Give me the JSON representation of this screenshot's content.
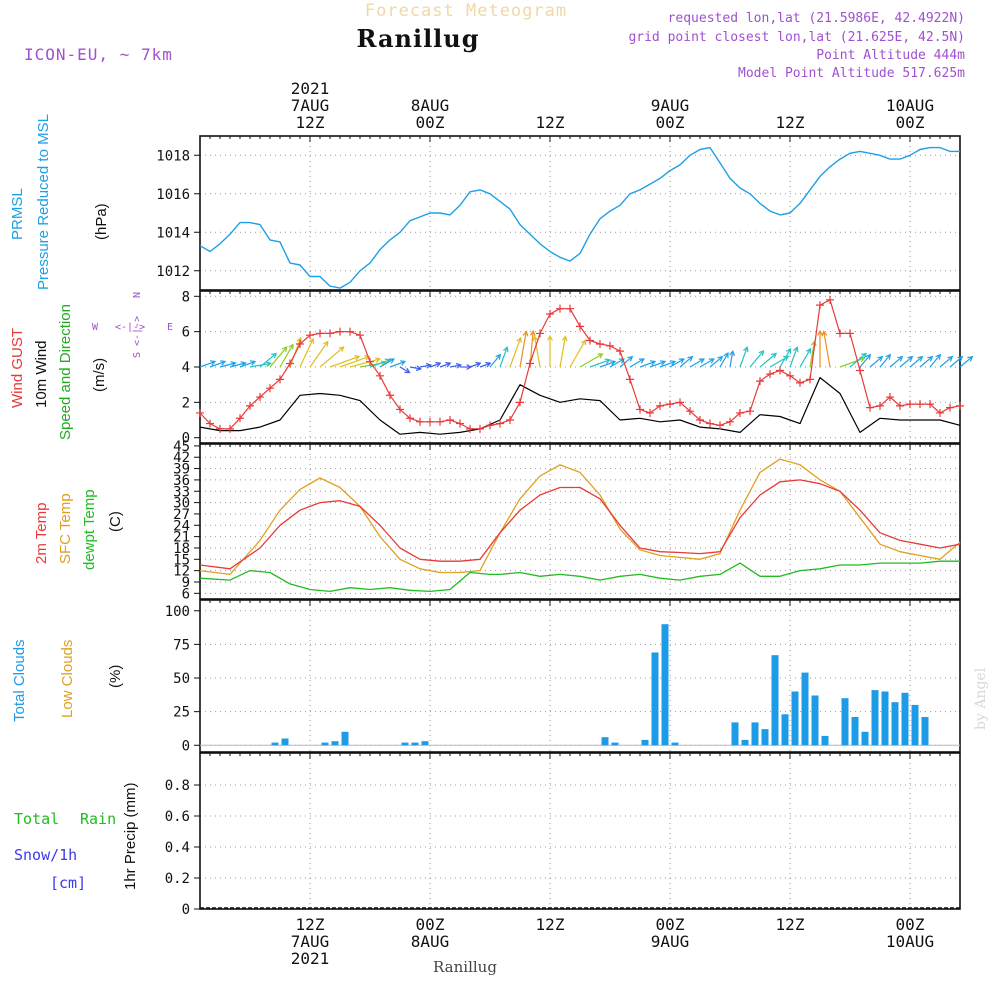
{
  "header": {
    "super_title": "Forecast Meteogram",
    "location": "Ranillug",
    "model": "ICON-EU, ~ 7km",
    "info_lines": [
      "requested lon,lat (21.5986E, 42.4922N)",
      "grid point closest lon,lat (21.625E, 42.5N)",
      "Point Altitude 444m",
      "Model Point Altitude 517.625m"
    ],
    "credit": "by Angel",
    "bottom_label": "Ranillug"
  },
  "time_axis": {
    "top": [
      {
        "hour": 11,
        "lines": [
          "2021",
          "7AUG",
          "12Z"
        ]
      },
      {
        "hour": 23,
        "lines": [
          "8AUG",
          "00Z"
        ]
      },
      {
        "hour": 35,
        "lines": [
          "12Z"
        ]
      },
      {
        "hour": 47,
        "lines": [
          "9AUG",
          "00Z"
        ]
      },
      {
        "hour": 59,
        "lines": [
          "12Z"
        ]
      },
      {
        "hour": 71,
        "lines": [
          "10AUG",
          "00Z"
        ]
      }
    ],
    "bottom": [
      {
        "hour": 11,
        "lines": [
          "12Z",
          "7AUG",
          "2021"
        ]
      },
      {
        "hour": 23,
        "lines": [
          "00Z",
          "8AUG"
        ]
      },
      {
        "hour": 35,
        "lines": [
          "12Z"
        ]
      },
      {
        "hour": 47,
        "lines": [
          "00Z",
          "9AUG"
        ]
      },
      {
        "hour": 59,
        "lines": [
          "12Z"
        ]
      },
      {
        "hour": 71,
        "lines": [
          "00Z",
          "10AUG"
        ]
      }
    ],
    "range_hours": [
      0,
      76
    ]
  },
  "colors": {
    "pressure": "#1ea0e6",
    "gust": "#e83a3a",
    "wind": "#000000",
    "dir_label": "#22aa22",
    "temp2m": "#e83a3a",
    "sfc": "#e0a020",
    "dewpt": "#22bb22",
    "clouds_total": "#1e9be6",
    "clouds_low": "#e0a020",
    "rain": "#22bb22",
    "snow": "#3a3aee",
    "purple": "#a050d0"
  },
  "panels": {
    "pressure": {
      "labels": [
        "PRMSL",
        "Pressure Reduced to MSL"
      ],
      "unit": "(hPa)",
      "yticks": [
        "1012",
        "1014",
        "1016",
        "1018"
      ]
    },
    "wind": {
      "labels": [
        "Wind GUST",
        "10m Wind",
        "Speed and Direction"
      ],
      "unit": "(m/s)",
      "yticks": [
        "0",
        "2",
        "4",
        "6",
        "8"
      ],
      "compass": {
        "n": "N",
        "s": "S",
        "e": "E",
        "w": "W"
      }
    },
    "temp": {
      "labels": [
        "2m Temp",
        "SFC Temp",
        "dewpt Temp"
      ],
      "unit": "(C)",
      "yticks": [
        "6",
        "9",
        "12",
        "15",
        "18",
        "21",
        "24",
        "27",
        "30",
        "33",
        "36",
        "39",
        "42",
        "45"
      ]
    },
    "clouds": {
      "labels": [
        "Total Clouds",
        "Low Clouds"
      ],
      "unit": "(%)",
      "yticks": [
        "0",
        "25",
        "50",
        "75",
        "100"
      ]
    },
    "precip": {
      "labels": [
        "Total",
        "Rain",
        "Snow/1h",
        "[cm]"
      ],
      "unit": "1hr Precip (mm)",
      "yticks": [
        "0",
        "0.2",
        "0.4",
        "0.6",
        "0.8"
      ]
    }
  },
  "chart_data": [
    {
      "type": "line",
      "xlabel": "",
      "ylabel": "(hPa)",
      "ylim": [
        1011,
        1019
      ],
      "series": [
        {
          "name": "PRMSL",
          "x": [
            0,
            1,
            2,
            3,
            4,
            5,
            6,
            7,
            8,
            9,
            10,
            11,
            12,
            13,
            14,
            15,
            16,
            17,
            18,
            19,
            20,
            21,
            22,
            23,
            24,
            25,
            26,
            27,
            28,
            29,
            30,
            31,
            32,
            33,
            34,
            35,
            36,
            37,
            38,
            39,
            40,
            41,
            42,
            43,
            44,
            45,
            46,
            47,
            48,
            49,
            50,
            51,
            52,
            53,
            54,
            55,
            56,
            57,
            58,
            59,
            60,
            61,
            62,
            63,
            64,
            65,
            66,
            67,
            68,
            69,
            70,
            71,
            72,
            73,
            74,
            75,
            76
          ],
          "values": [
            1013.3,
            1013.0,
            1013.4,
            1013.9,
            1014.5,
            1014.5,
            1014.4,
            1013.6,
            1013.5,
            1012.4,
            1012.3,
            1011.7,
            1011.7,
            1011.2,
            1011.1,
            1011.4,
            1012.0,
            1012.4,
            1013.1,
            1013.6,
            1014.0,
            1014.6,
            1014.8,
            1015.0,
            1015.0,
            1014.9,
            1015.4,
            1016.1,
            1016.2,
            1016.0,
            1015.6,
            1015.2,
            1014.4,
            1013.9,
            1013.4,
            1013.0,
            1012.7,
            1012.5,
            1012.9,
            1013.9,
            1014.7,
            1015.1,
            1015.4,
            1016.0,
            1016.2,
            1016.5,
            1016.8,
            1017.2,
            1017.5,
            1018.0,
            1018.3,
            1018.4,
            1017.6,
            1016.8,
            1016.3,
            1016.0,
            1015.5,
            1015.1,
            1014.9,
            1015.0,
            1015.5,
            1016.2,
            1016.9,
            1017.4,
            1017.8,
            1018.1,
            1018.2,
            1018.1,
            1018.0,
            1017.8,
            1017.8,
            1018.0,
            1018.3,
            1018.4,
            1018.4,
            1018.2,
            1018.2
          ]
        }
      ]
    },
    {
      "type": "line",
      "ylabel": "(m/s)",
      "ylim": [
        -0.3,
        8.3
      ],
      "series": [
        {
          "name": "Wind GUST",
          "x": [
            0,
            1,
            2,
            3,
            4,
            5,
            6,
            7,
            8,
            9,
            10,
            11,
            12,
            13,
            14,
            15,
            16,
            17,
            18,
            19,
            20,
            21,
            22,
            23,
            24,
            25,
            26,
            27,
            28,
            29,
            30,
            31,
            32,
            33,
            34,
            35,
            36,
            37,
            38,
            39,
            40,
            41,
            42,
            43,
            44,
            45,
            46,
            47,
            48,
            49,
            50,
            51,
            52,
            53,
            54,
            55,
            56,
            57,
            58,
            59,
            60,
            61,
            62,
            63,
            64,
            65,
            66,
            67,
            68,
            69,
            70,
            71,
            72,
            73,
            74,
            75,
            76
          ],
          "values": [
            1.4,
            0.8,
            0.5,
            0.5,
            1.1,
            1.8,
            2.3,
            2.8,
            3.3,
            4.2,
            5.3,
            5.8,
            5.9,
            5.9,
            6.0,
            6.0,
            5.8,
            4.3,
            3.5,
            2.4,
            1.6,
            1.1,
            0.9,
            0.9,
            0.9,
            1.0,
            0.8,
            0.5,
            0.5,
            0.7,
            0.8,
            1.0,
            2.0,
            4.2,
            5.9,
            7.0,
            7.3,
            7.3,
            6.3,
            5.5,
            5.3,
            5.2,
            4.9,
            3.3,
            1.6,
            1.4,
            1.8,
            1.9,
            2.0,
            1.5,
            1.0,
            0.8,
            0.7,
            0.9,
            1.4,
            1.5,
            3.2,
            3.6,
            3.8,
            3.5,
            3.1,
            3.3,
            7.5,
            7.8,
            5.9,
            5.9,
            3.8,
            1.7,
            1.8,
            2.3,
            1.8,
            1.9,
            1.9,
            1.9,
            1.4,
            1.7,
            1.8
          ]
        },
        {
          "name": "10m Wind",
          "x": [
            0,
            2,
            4,
            6,
            8,
            10,
            12,
            14,
            16,
            18,
            20,
            22,
            24,
            26,
            28,
            30,
            32,
            34,
            36,
            38,
            40,
            42,
            44,
            46,
            48,
            50,
            52,
            54,
            56,
            58,
            60,
            62,
            64,
            66,
            68,
            70,
            72,
            74,
            76
          ],
          "values": [
            0.6,
            0.4,
            0.4,
            0.6,
            1.0,
            2.4,
            2.5,
            2.4,
            2.1,
            1.0,
            0.2,
            0.3,
            0.2,
            0.3,
            0.5,
            1.0,
            3.0,
            2.4,
            2.0,
            2.2,
            2.1,
            1.0,
            1.1,
            0.9,
            1.0,
            0.6,
            0.5,
            0.3,
            1.3,
            1.2,
            0.8,
            3.4,
            2.5,
            0.3,
            1.1,
            1.0,
            1.0,
            1.0,
            0.7
          ]
        }
      ]
    },
    {
      "type": "line",
      "ylabel": "(C)",
      "ylim": [
        4.5,
        45.5
      ],
      "series": [
        {
          "name": "2m Temp",
          "x": [
            0,
            3,
            6,
            8,
            10,
            12,
            14,
            16,
            18,
            20,
            22,
            24,
            26,
            28,
            30,
            32,
            34,
            36,
            38,
            40,
            42,
            44,
            46,
            48,
            50,
            52,
            54,
            56,
            58,
            60,
            62,
            64,
            66,
            68,
            70,
            72,
            74,
            76
          ],
          "values": [
            13.5,
            12.5,
            18,
            24,
            28,
            30,
            30.5,
            29,
            24,
            18,
            15,
            14.5,
            14.5,
            15,
            22,
            28,
            32,
            34,
            34,
            31,
            24,
            18,
            17,
            16.8,
            16.5,
            17,
            26,
            32,
            35.5,
            36,
            35,
            33,
            28,
            22,
            20,
            19,
            18,
            19
          ]
        },
        {
          "name": "SFC Temp",
          "x": [
            0,
            3,
            6,
            8,
            10,
            12,
            14,
            16,
            18,
            20,
            22,
            24,
            26,
            28,
            30,
            32,
            34,
            36,
            38,
            40,
            42,
            44,
            46,
            48,
            50,
            52,
            54,
            56,
            58,
            60,
            62,
            64,
            66,
            68,
            70,
            72,
            74,
            76
          ],
          "values": [
            12,
            11,
            20,
            28,
            33.5,
            36.5,
            34,
            29,
            21,
            15,
            12.5,
            11.5,
            11.5,
            12,
            22,
            31,
            37,
            40,
            38,
            32,
            23,
            17.5,
            16,
            15.5,
            15,
            16.5,
            28,
            38,
            41.5,
            40,
            36,
            33,
            26,
            19,
            17,
            16,
            15,
            19.5
          ]
        },
        {
          "name": "dewpt Temp",
          "x": [
            0,
            3,
            5,
            7,
            9,
            11,
            13,
            15,
            17,
            19,
            21,
            23,
            25,
            27,
            29,
            30,
            32,
            34,
            36,
            38,
            40,
            42,
            44,
            46,
            48,
            50,
            52,
            54,
            56,
            57,
            58,
            60,
            62,
            64,
            66,
            68,
            70,
            72,
            74,
            76
          ],
          "values": [
            10,
            9.5,
            12,
            11.5,
            8.5,
            7,
            6.5,
            7.5,
            7,
            7.5,
            6.8,
            6.5,
            7,
            11.5,
            11,
            11,
            11.5,
            10.5,
            11,
            10.5,
            9.5,
            10.5,
            11,
            10,
            9.5,
            10.5,
            11,
            14,
            10.5,
            10.5,
            10.5,
            12,
            12.5,
            13.5,
            13.5,
            14,
            14,
            14,
            14.5,
            14.5
          ]
        }
      ]
    },
    {
      "type": "bar",
      "ylabel": "(%)",
      "ylim": [
        -5,
        108
      ],
      "series": [
        {
          "name": "Total Clouds",
          "x": [
            7.5,
            8.5,
            12.5,
            13.5,
            14.5,
            20.5,
            21.5,
            22.5,
            40.5,
            41.5,
            44.5,
            45.5,
            46.5,
            47.5,
            53.5,
            54.5,
            55.5,
            56.5,
            57.5,
            58.5,
            59.5,
            60.5,
            61.5,
            62.5,
            63.5,
            64.5,
            65.5,
            66.5,
            67.5,
            68.5,
            69.5,
            70.5,
            71.5,
            72.5
          ],
          "values": [
            2,
            5,
            2,
            3,
            10,
            2,
            2,
            3,
            6,
            2,
            4,
            69,
            90,
            2,
            17,
            4,
            17,
            12,
            67,
            23,
            40,
            54,
            37,
            7,
            0,
            35,
            21,
            10,
            41,
            40,
            32,
            39,
            30,
            21
          ]
        }
      ]
    },
    {
      "type": "line",
      "ylabel": "1hr Precip (mm)",
      "ylim": [
        0,
        1
      ],
      "series": [
        {
          "name": "Total Rain",
          "x": [
            0,
            76
          ],
          "values": [
            0,
            0
          ]
        }
      ]
    }
  ],
  "wind_barbs": {
    "label": "10m Wind direction/speed arrows",
    "y_level": 4,
    "direction_deg": [
      250,
      250,
      255,
      255,
      250,
      260,
      230,
      220,
      210,
      200,
      205,
      215,
      230,
      250,
      250,
      255,
      260,
      250,
      240,
      250,
      300,
      280,
      260,
      250,
      250,
      260,
      270,
      250,
      250,
      220,
      200,
      200,
      190,
      185,
      170,
      180,
      190,
      210,
      240,
      250,
      250,
      240,
      230,
      240,
      250,
      250,
      250,
      240,
      230,
      240,
      240,
      230,
      210,
      190,
      200,
      220,
      230,
      240,
      210,
      200,
      210,
      190,
      180,
      170,
      250,
      230,
      220,
      230,
      220,
      230,
      230,
      230,
      230,
      220,
      230,
      230,
      230
    ],
    "speed": [
      1,
      1,
      1,
      1,
      1,
      1.5,
      1.5,
      2,
      2,
      2.5,
      2.5,
      2.5,
      2.5,
      2.5,
      2.5,
      2.5,
      2,
      1.5,
      1,
      1,
      0.5,
      0.5,
      0.5,
      0.5,
      0.5,
      0.5,
      0.5,
      0.5,
      0.5,
      1,
      1.5,
      2.5,
      3,
      3,
      2.5,
      2.5,
      2.5,
      2.5,
      2,
      1.5,
      1,
      1,
      1,
      1,
      1,
      1,
      1,
      1,
      1,
      1,
      1,
      1,
      1,
      1,
      1.5,
      1.5,
      1.5,
      1.5,
      1.5,
      1.5,
      1.5,
      2,
      3,
      3,
      2,
      1.5,
      1,
      1,
      1,
      1,
      1,
      1,
      1,
      1,
      1,
      1,
      1
    ]
  }
}
